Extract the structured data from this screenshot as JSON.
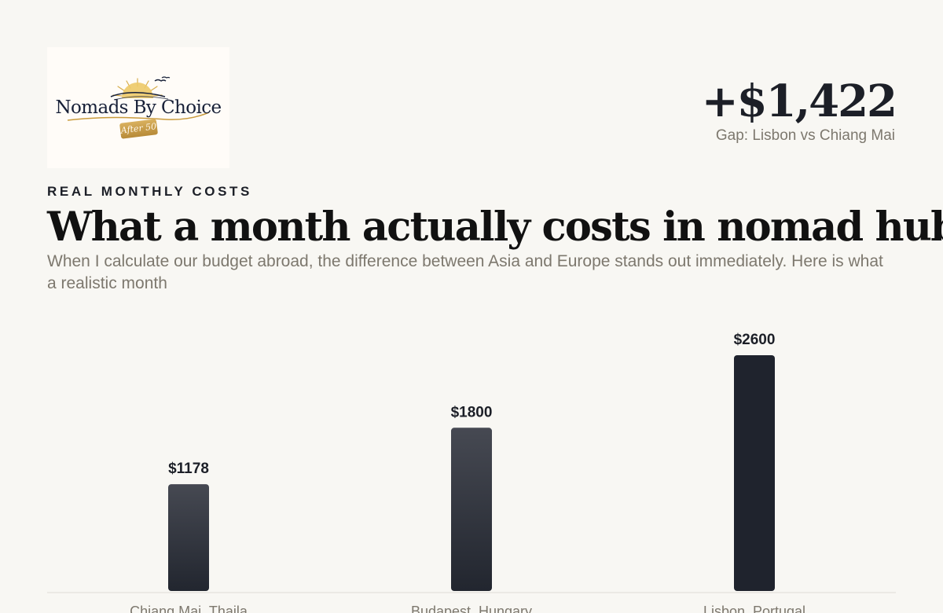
{
  "brand": {
    "name": "Nomads By Choice",
    "badge": "After 50"
  },
  "stat": {
    "value": "+$1,422",
    "label": "Gap: Lisbon vs Chiang Mai"
  },
  "section": {
    "eyebrow": "REAL MONTHLY COSTS",
    "title": "What a month actually costs in nomad hubs",
    "subtitle": "When I calculate our budget abroad, the difference between Asia and Europe stands out immediately. Here is what a realistic month"
  },
  "chart_data": {
    "type": "bar",
    "categories": [
      "Chiang Mai, Thaila",
      "Budapest, Hungary",
      "Lisbon, Portugal"
    ],
    "values": [
      1178,
      1800,
      2600
    ],
    "value_labels": [
      "$1178",
      "$1800",
      "$2600"
    ],
    "ylim": [
      0,
      2600
    ],
    "grid": false,
    "colors": {
      "bar": "#3f424b",
      "bar_dark": "#1f232d",
      "highlight": "#1f232d"
    }
  }
}
